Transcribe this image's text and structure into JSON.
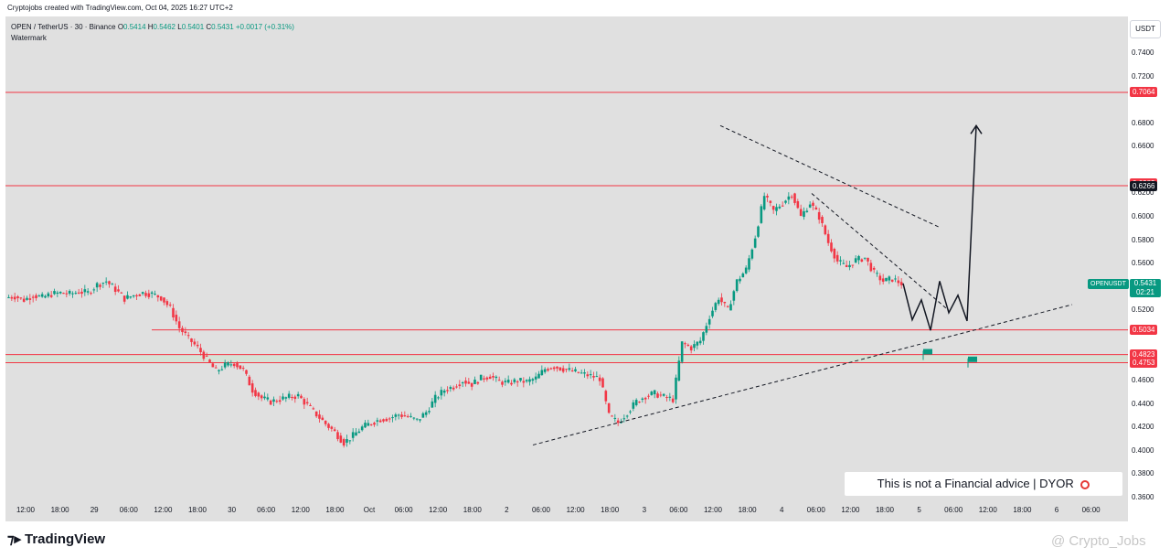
{
  "header": {
    "attribution": "Cryptojobs created with TradingView.com, Oct 04, 2025 16:27 UTC+2"
  },
  "legend": {
    "symbol": "OPEN / TetherUS · 30 · Binance",
    "open_label": "O",
    "open_value": "0.5414",
    "high_label": "H",
    "high_value": "0.5462",
    "low_label": "L",
    "low_value": "0.5401",
    "close_label": "C",
    "close_value": "0.5431",
    "change": "+0.0017 (+0.31%)",
    "watermark_label": "Watermark"
  },
  "price_axis": {
    "currency_button": "USDT",
    "ticks": [
      "0.7400",
      "0.7200",
      "0.6800",
      "0.6600",
      "0.6200",
      "0.6000",
      "0.5800",
      "0.5600",
      "0.5200",
      "0.4600",
      "0.4400",
      "0.4200",
      "0.4000",
      "0.3800",
      "0.3600"
    ],
    "tick_values": [
      0.74,
      0.72,
      0.68,
      0.66,
      0.62,
      0.6,
      0.58,
      0.56,
      0.52,
      0.46,
      0.44,
      0.42,
      0.4,
      0.38,
      0.36
    ]
  },
  "price_tags": [
    {
      "label": "0.7064",
      "value": 0.7064,
      "color": "#f23645"
    },
    {
      "label": "0.6283",
      "value": 0.6283,
      "color": "#f23645"
    },
    {
      "label": "0.6266",
      "value": 0.6266,
      "color": "#131722"
    },
    {
      "label": "0.5034",
      "value": 0.5034,
      "color": "#f23645"
    },
    {
      "label": "0.4823",
      "value": 0.4823,
      "color": "#f23645"
    },
    {
      "label": "0.4753",
      "value": 0.4753,
      "color": "#f23645"
    }
  ],
  "last_price": {
    "symbol_label": "OPENUSDT",
    "value": "0.5431",
    "countdown": "02:21"
  },
  "time_axis": {
    "labels": [
      "12:00",
      "18:00",
      "29",
      "06:00",
      "12:00",
      "18:00",
      "30",
      "06:00",
      "12:00",
      "18:00",
      "Oct",
      "06:00",
      "12:00",
      "18:00",
      "2",
      "06:00",
      "12:00",
      "18:00",
      "3",
      "06:00",
      "12:00",
      "18:00",
      "4",
      "06:00",
      "12:00",
      "18:00",
      "5",
      "06:00",
      "12:00",
      "18:00",
      "6",
      "06:00"
    ]
  },
  "disclaimer": {
    "text": "This is not a Financial advice | DYOR"
  },
  "footer": {
    "brand": "TradingView",
    "watermark": "@ Crypto_Jobs"
  },
  "chart_data": {
    "type": "candlestick",
    "title": "OPEN / TetherUS · 30 · Binance",
    "ylim": [
      0.355,
      0.76
    ],
    "price_scale_ticks": [
      0.74,
      0.72,
      0.7,
      0.68,
      0.66,
      0.64,
      0.62,
      0.6,
      0.58,
      0.56,
      0.54,
      0.52,
      0.5,
      0.48,
      0.46,
      0.44,
      0.42,
      0.4,
      0.38,
      0.36
    ],
    "horizontal_levels": [
      0.7064,
      0.6266,
      0.5034,
      0.4823,
      0.4753
    ],
    "support_zone": [
      0.4753,
      0.4823
    ],
    "close_path_points": [
      [
        0,
        0.531
      ],
      [
        10,
        0.532
      ],
      [
        20,
        0.529
      ],
      [
        30,
        0.533
      ],
      [
        40,
        0.531
      ],
      [
        50,
        0.534
      ],
      [
        60,
        0.535
      ],
      [
        70,
        0.534
      ],
      [
        80,
        0.536
      ],
      [
        90,
        0.535
      ],
      [
        100,
        0.542
      ],
      [
        110,
        0.545
      ],
      [
        120,
        0.538
      ],
      [
        130,
        0.53
      ],
      [
        140,
        0.533
      ],
      [
        150,
        0.535
      ],
      [
        160,
        0.534
      ],
      [
        170,
        0.531
      ],
      [
        180,
        0.522
      ],
      [
        190,
        0.505
      ],
      [
        200,
        0.496
      ],
      [
        210,
        0.488
      ],
      [
        220,
        0.478
      ],
      [
        230,
        0.468
      ],
      [
        240,
        0.473
      ],
      [
        250,
        0.475
      ],
      [
        260,
        0.469
      ],
      [
        270,
        0.452
      ],
      [
        280,
        0.445
      ],
      [
        290,
        0.442
      ],
      [
        300,
        0.444
      ],
      [
        310,
        0.446
      ],
      [
        320,
        0.447
      ],
      [
        330,
        0.439
      ],
      [
        340,
        0.431
      ],
      [
        350,
        0.423
      ],
      [
        360,
        0.416
      ],
      [
        370,
        0.407
      ],
      [
        380,
        0.413
      ],
      [
        390,
        0.42
      ],
      [
        400,
        0.424
      ],
      [
        410,
        0.427
      ],
      [
        420,
        0.428
      ],
      [
        430,
        0.431
      ],
      [
        440,
        0.429
      ],
      [
        450,
        0.426
      ],
      [
        460,
        0.433
      ],
      [
        470,
        0.445
      ],
      [
        480,
        0.452
      ],
      [
        490,
        0.455
      ],
      [
        500,
        0.46
      ],
      [
        510,
        0.457
      ],
      [
        520,
        0.462
      ],
      [
        530,
        0.464
      ],
      [
        540,
        0.459
      ],
      [
        550,
        0.458
      ],
      [
        560,
        0.46
      ],
      [
        570,
        0.459
      ],
      [
        580,
        0.462
      ],
      [
        590,
        0.47
      ],
      [
        600,
        0.472
      ],
      [
        610,
        0.47
      ],
      [
        620,
        0.468
      ],
      [
        630,
        0.466
      ],
      [
        640,
        0.464
      ],
      [
        650,
        0.462
      ],
      [
        660,
        0.43
      ],
      [
        670,
        0.424
      ],
      [
        680,
        0.433
      ],
      [
        690,
        0.442
      ],
      [
        700,
        0.447
      ],
      [
        710,
        0.449
      ],
      [
        720,
        0.446
      ],
      [
        730,
        0.444
      ],
      [
        740,
        0.492
      ],
      [
        750,
        0.488
      ],
      [
        760,
        0.494
      ],
      [
        770,
        0.515
      ],
      [
        780,
        0.531
      ],
      [
        790,
        0.52
      ],
      [
        800,
        0.545
      ],
      [
        810,
        0.555
      ],
      [
        820,
        0.583
      ],
      [
        830,
        0.618
      ],
      [
        840,
        0.605
      ],
      [
        850,
        0.612
      ],
      [
        860,
        0.62
      ],
      [
        870,
        0.6
      ],
      [
        880,
        0.612
      ],
      [
        890,
        0.6
      ],
      [
        900,
        0.578
      ],
      [
        910,
        0.562
      ],
      [
        920,
        0.557
      ],
      [
        930,
        0.563
      ],
      [
        940,
        0.565
      ],
      [
        950,
        0.552
      ],
      [
        960,
        0.545
      ],
      [
        970,
        0.547
      ],
      [
        980,
        0.543
      ]
    ],
    "projection_path": [
      [
        980,
        0.5431
      ],
      [
        990,
        0.512
      ],
      [
        1000,
        0.529
      ],
      [
        1010,
        0.503
      ],
      [
        1020,
        0.545
      ],
      [
        1030,
        0.518
      ],
      [
        1040,
        0.533
      ],
      [
        1050,
        0.511
      ],
      [
        1060,
        0.678
      ]
    ],
    "upper_trendline": [
      [
        780,
        0.678
      ],
      [
        1020,
        0.591
      ]
    ],
    "upper_trendline_inner": [
      [
        880,
        0.62
      ],
      [
        1030,
        0.52
      ]
    ],
    "lower_trendline": [
      [
        575,
        0.405
      ],
      [
        1165,
        0.525
      ]
    ]
  }
}
